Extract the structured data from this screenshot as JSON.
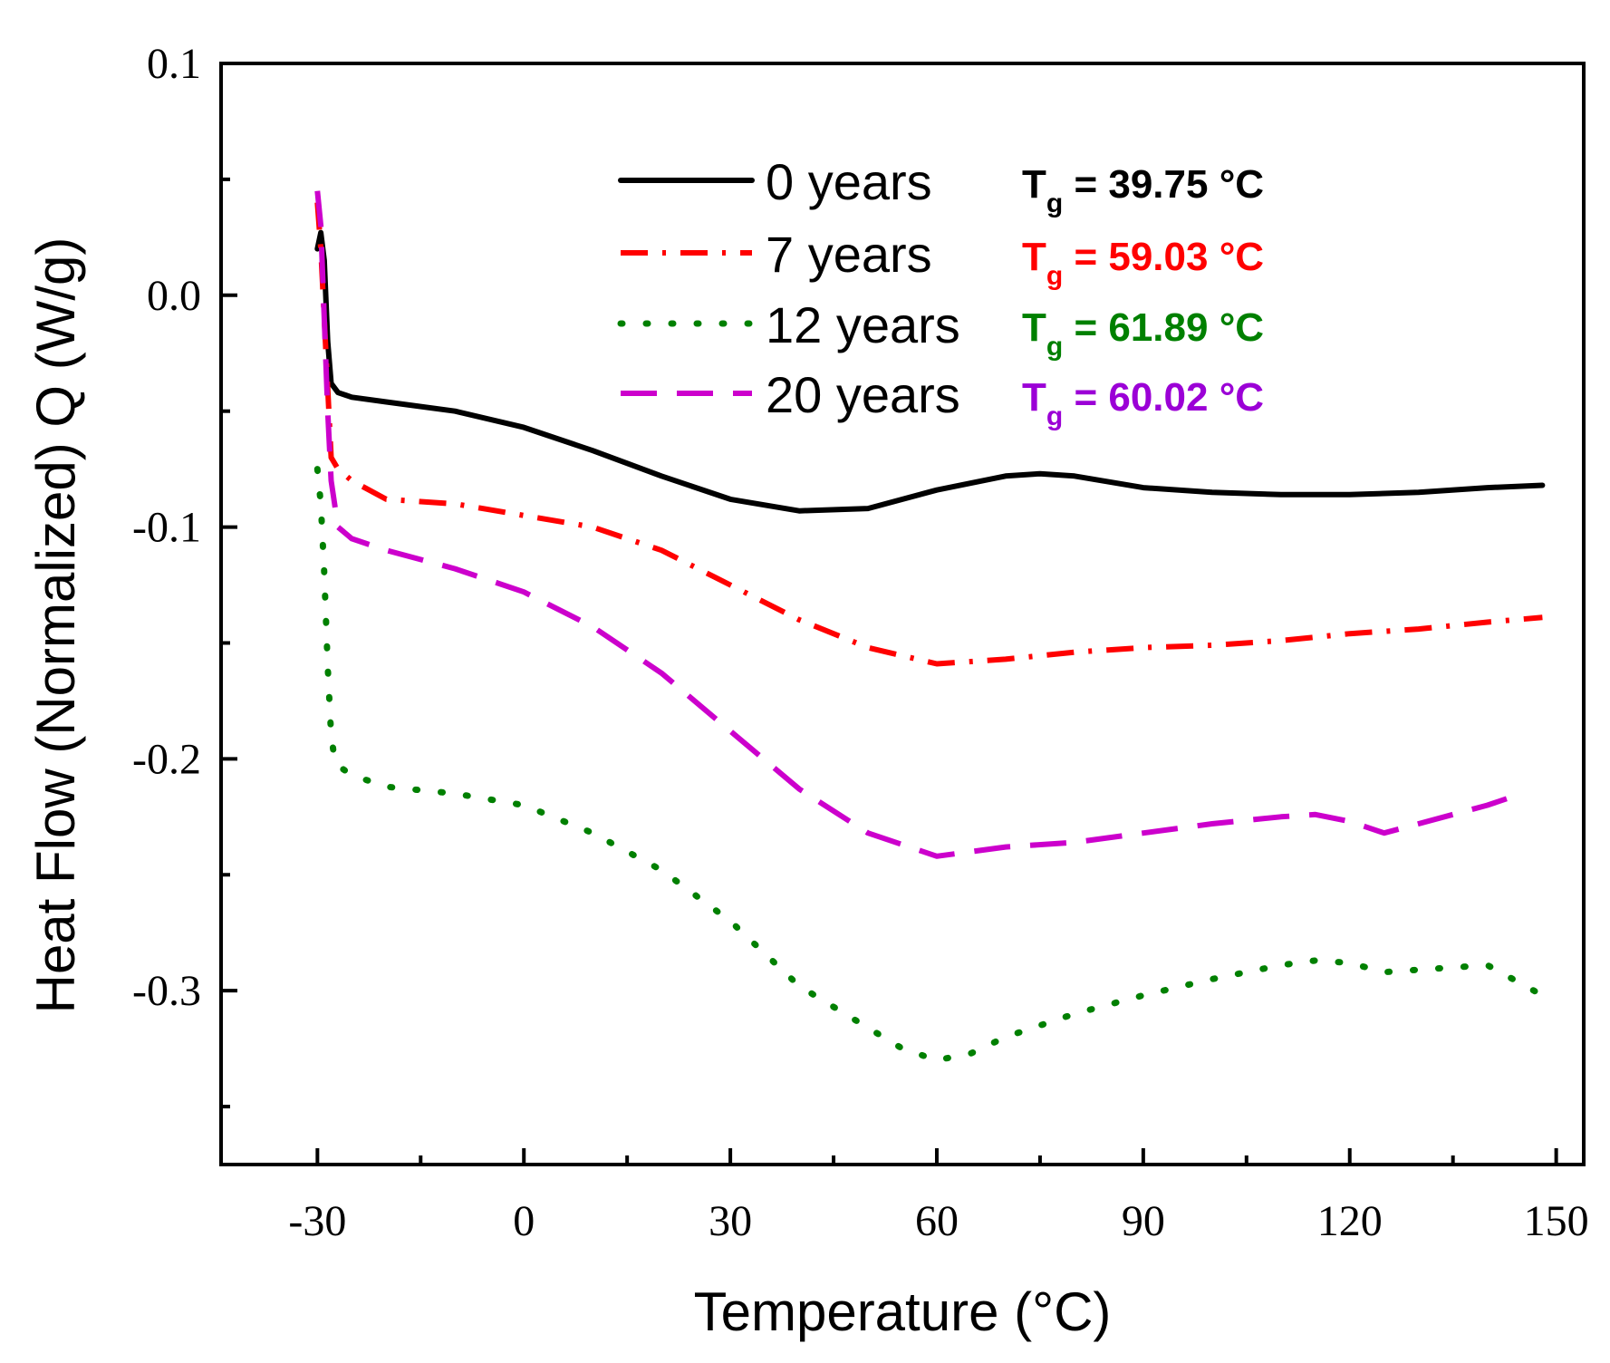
{
  "chart_data": {
    "type": "line",
    "xlabel": "Temperature (°C)",
    "ylabel": "Heat Flow (Normalized) Q (W/g)",
    "xlim": [
      -44,
      154
    ],
    "ylim": [
      -0.375,
      0.1
    ],
    "x_ticks": [
      -30,
      0,
      30,
      60,
      90,
      120,
      150
    ],
    "x_tick_labels": [
      "-30",
      "0",
      "30",
      "60",
      "90",
      "120",
      "150"
    ],
    "x_minor_ticks": [
      -15,
      15,
      45,
      75,
      105,
      135
    ],
    "y_ticks": [
      0.1,
      0.0,
      -0.1,
      -0.2,
      -0.3
    ],
    "y_tick_labels": [
      "0.1",
      "0.0",
      "-0.1",
      "-0.2",
      "-0.3"
    ],
    "y_minor_ticks": [
      0.05,
      -0.05,
      -0.15,
      -0.25,
      -0.35
    ],
    "grid": false,
    "legend_position": "top-right",
    "series": [
      {
        "name": "0 years",
        "tg_label": "T",
        "tg_sub": "g",
        "tg_value": " = 39.75 °C",
        "color": "#000000",
        "style": "solid",
        "x": [
          -30,
          -29.5,
          -29,
          -28.5,
          -28,
          -27,
          -25,
          -20,
          -10,
          0,
          10,
          20,
          30,
          40,
          50,
          60,
          70,
          75,
          80,
          90,
          100,
          110,
          120,
          130,
          140,
          148
        ],
        "y": [
          0.02,
          0.027,
          0.015,
          -0.02,
          -0.038,
          -0.042,
          -0.044,
          -0.046,
          -0.05,
          -0.057,
          -0.067,
          -0.078,
          -0.088,
          -0.093,
          -0.092,
          -0.084,
          -0.078,
          -0.077,
          -0.078,
          -0.083,
          -0.085,
          -0.086,
          -0.086,
          -0.085,
          -0.083,
          -0.082
        ]
      },
      {
        "name": "7 years",
        "tg_label": "T",
        "tg_sub": "g",
        "tg_value": " = 59.03 °C",
        "color": "#ff0000",
        "style": "dashdot",
        "x": [
          -30,
          -29.5,
          -29,
          -28,
          -27,
          -25,
          -20,
          -10,
          0,
          10,
          20,
          30,
          40,
          50,
          60,
          70,
          80,
          90,
          100,
          110,
          120,
          130,
          140,
          148
        ],
        "y": [
          0.04,
          0.02,
          -0.01,
          -0.07,
          -0.075,
          -0.08,
          -0.088,
          -0.09,
          -0.095,
          -0.1,
          -0.11,
          -0.125,
          -0.14,
          -0.152,
          -0.159,
          -0.157,
          -0.154,
          -0.152,
          -0.151,
          -0.149,
          -0.146,
          -0.144,
          -0.141,
          -0.139
        ]
      },
      {
        "name": "12 years",
        "tg_label": "T",
        "tg_sub": "g",
        "tg_value": " = 61.89 °C",
        "color": "#008000",
        "style": "dotted",
        "x": [
          -30,
          -29.5,
          -29,
          -28.5,
          -28,
          -27.5,
          -27,
          -25,
          -20,
          -10,
          0,
          10,
          20,
          30,
          40,
          50,
          55,
          60,
          65,
          70,
          80,
          90,
          100,
          110,
          115,
          120,
          125,
          130,
          140,
          148
        ],
        "y": [
          -0.075,
          -0.09,
          -0.12,
          -0.16,
          -0.19,
          -0.2,
          -0.203,
          -0.207,
          -0.212,
          -0.215,
          -0.22,
          -0.232,
          -0.248,
          -0.27,
          -0.298,
          -0.316,
          -0.325,
          -0.33,
          -0.327,
          -0.32,
          -0.31,
          -0.302,
          -0.295,
          -0.289,
          -0.287,
          -0.288,
          -0.292,
          -0.291,
          -0.289,
          -0.302
        ]
      },
      {
        "name": "20 years",
        "tg_label": "T",
        "tg_sub": "g",
        "tg_value": " = 60.02 °C",
        "color": "#cc00cc",
        "tg_color": "#9b00d6",
        "style": "dashed",
        "x": [
          -30,
          -29.5,
          -29,
          -28.5,
          -28,
          -27,
          -25,
          -20,
          -10,
          0,
          10,
          20,
          30,
          40,
          50,
          60,
          70,
          80,
          90,
          100,
          110,
          115,
          120,
          125,
          130,
          140,
          145
        ],
        "y": [
          0.045,
          0.03,
          -0.01,
          -0.05,
          -0.08,
          -0.1,
          -0.105,
          -0.11,
          -0.118,
          -0.128,
          -0.143,
          -0.163,
          -0.188,
          -0.213,
          -0.232,
          -0.242,
          -0.238,
          -0.236,
          -0.232,
          -0.228,
          -0.225,
          -0.224,
          -0.227,
          -0.232,
          -0.228,
          -0.22,
          -0.215
        ]
      }
    ]
  }
}
